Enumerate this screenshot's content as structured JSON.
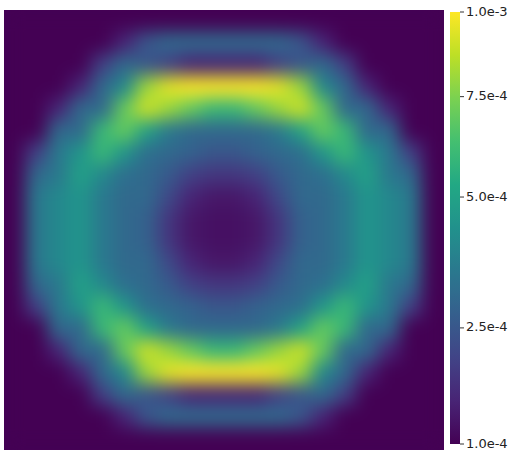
{
  "chart_data": {
    "type": "heatmap",
    "tick_labels": false,
    "cells": [
      [
        0.0001,
        0.0001,
        0.0001,
        0.0001,
        0.0001,
        0.0001,
        0.0001,
        0.0001,
        0.0001,
        0.0001,
        0.0001,
        0.0001,
        0.0001,
        0.0001,
        0.0001,
        0.0001,
        0.0001,
        0.0001,
        0.0001,
        0.0001
      ],
      [
        0.0001,
        0.0001,
        0.0001,
        0.0001,
        0.0001,
        0.00015,
        0.00025,
        0.0003,
        0.0003,
        0.0003,
        0.0003,
        0.0003,
        0.0003,
        0.00025,
        0.00015,
        0.0001,
        0.0001,
        0.0001,
        0.0001,
        0.0001
      ],
      [
        0.0001,
        0.0001,
        0.0001,
        0.0001,
        0.0002,
        0.0003,
        0.00025,
        0.0002,
        0.00015,
        0.00015,
        0.00015,
        0.00015,
        0.0002,
        0.00025,
        0.0003,
        0.0002,
        0.0001,
        0.0001,
        0.0001,
        0.0001
      ],
      [
        0.0001,
        0.0001,
        0.0001,
        0.00015,
        0.0003,
        0.0004,
        0.0008,
        0.00095,
        0.001,
        0.001,
        0.001,
        0.001,
        0.00095,
        0.0008,
        0.0004,
        0.0003,
        0.00015,
        0.0001,
        0.0001,
        0.0001
      ],
      [
        0.0001,
        0.0001,
        0.00015,
        0.0003,
        0.0003,
        0.0007,
        0.0009,
        0.0008,
        0.0007,
        0.0006,
        0.0006,
        0.0007,
        0.0008,
        0.0009,
        0.0007,
        0.0003,
        0.0003,
        0.00015,
        0.0001,
        0.0001
      ],
      [
        0.0001,
        0.0001,
        0.0003,
        0.0003,
        0.0006,
        0.0007,
        0.0005,
        0.00035,
        0.0003,
        0.0003,
        0.0003,
        0.0003,
        0.00035,
        0.0005,
        0.0007,
        0.0006,
        0.0003,
        0.0003,
        0.0001,
        0.0001
      ],
      [
        0.0001,
        0.0002,
        0.00035,
        0.00045,
        0.0006,
        0.00045,
        0.00032,
        0.0003,
        0.00028,
        0.00025,
        0.00025,
        0.00028,
        0.0003,
        0.00032,
        0.00045,
        0.0006,
        0.00045,
        0.00035,
        0.0002,
        0.0001
      ],
      [
        0.0001,
        0.0003,
        0.00035,
        0.0005,
        0.0004,
        0.00032,
        0.0003,
        0.00026,
        0.0002,
        0.00018,
        0.00018,
        0.0002,
        0.00026,
        0.0003,
        0.00032,
        0.0004,
        0.0005,
        0.00035,
        0.0003,
        0.0001
      ],
      [
        0.0001,
        0.00035,
        0.0004,
        0.00045,
        0.00035,
        0.0003,
        0.0003,
        0.00022,
        0.00015,
        0.00013,
        0.00013,
        0.00015,
        0.00022,
        0.0003,
        0.0003,
        0.00035,
        0.00045,
        0.0004,
        0.00035,
        0.0001
      ],
      [
        0.0001,
        0.00035,
        0.0004,
        0.00045,
        0.00035,
        0.0003,
        0.00028,
        0.00018,
        0.00013,
        0.00012,
        0.00012,
        0.00013,
        0.00018,
        0.00028,
        0.0003,
        0.00035,
        0.00045,
        0.0004,
        0.00035,
        0.0001
      ],
      [
        0.0001,
        0.00035,
        0.0004,
        0.00045,
        0.00035,
        0.0003,
        0.00028,
        0.00018,
        0.00013,
        0.00012,
        0.00012,
        0.00013,
        0.00018,
        0.00028,
        0.0003,
        0.00035,
        0.00045,
        0.0004,
        0.00035,
        0.0001
      ],
      [
        0.0001,
        0.00035,
        0.0004,
        0.00045,
        0.00035,
        0.0003,
        0.0003,
        0.00022,
        0.00015,
        0.00013,
        0.00013,
        0.00015,
        0.00022,
        0.0003,
        0.0003,
        0.00035,
        0.00045,
        0.0004,
        0.00035,
        0.0001
      ],
      [
        0.0001,
        0.0003,
        0.00035,
        0.0005,
        0.0004,
        0.00032,
        0.0003,
        0.00026,
        0.0002,
        0.00018,
        0.00018,
        0.0002,
        0.00026,
        0.0003,
        0.00032,
        0.0004,
        0.0005,
        0.00035,
        0.0003,
        0.0001
      ],
      [
        0.0001,
        0.0002,
        0.00035,
        0.00045,
        0.0006,
        0.00045,
        0.00032,
        0.0003,
        0.00028,
        0.00025,
        0.00025,
        0.00028,
        0.0003,
        0.00032,
        0.00045,
        0.0006,
        0.00045,
        0.00035,
        0.0002,
        0.0001
      ],
      [
        0.0001,
        0.0001,
        0.0003,
        0.0003,
        0.0006,
        0.0007,
        0.0005,
        0.00035,
        0.0003,
        0.0003,
        0.0003,
        0.0003,
        0.00035,
        0.0005,
        0.0007,
        0.0006,
        0.0003,
        0.0003,
        0.0001,
        0.0001
      ],
      [
        0.0001,
        0.0001,
        0.00015,
        0.0003,
        0.0003,
        0.0007,
        0.0009,
        0.0008,
        0.0007,
        0.0006,
        0.0006,
        0.0007,
        0.0008,
        0.0009,
        0.0007,
        0.0003,
        0.0003,
        0.00015,
        0.0001,
        0.0001
      ],
      [
        0.0001,
        0.0001,
        0.0001,
        0.00015,
        0.0003,
        0.0004,
        0.0008,
        0.00095,
        0.001,
        0.001,
        0.001,
        0.001,
        0.00095,
        0.0008,
        0.0004,
        0.0003,
        0.00015,
        0.0001,
        0.0001,
        0.0001
      ],
      [
        0.0001,
        0.0001,
        0.0001,
        0.0001,
        0.0002,
        0.0003,
        0.00025,
        0.0002,
        0.00015,
        0.00015,
        0.00015,
        0.00015,
        0.0002,
        0.00025,
        0.0003,
        0.0002,
        0.0001,
        0.0001,
        0.0001,
        0.0001
      ],
      [
        0.0001,
        0.0001,
        0.0001,
        0.0001,
        0.0001,
        0.00015,
        0.00025,
        0.0003,
        0.0003,
        0.0003,
        0.0003,
        0.0003,
        0.0003,
        0.00025,
        0.00015,
        0.0001,
        0.0001,
        0.0001,
        0.0001,
        0.0001
      ],
      [
        0.0001,
        0.0001,
        0.0001,
        0.0001,
        0.0001,
        0.0001,
        0.0001,
        0.0001,
        0.0001,
        0.0001,
        0.0001,
        0.0001,
        0.0001,
        0.0001,
        0.0001,
        0.0001,
        0.0001,
        0.0001,
        0.0001,
        0.0001
      ]
    ],
    "colorbar": {
      "range": [
        0.0001,
        0.001
      ],
      "ticks": [
        {
          "value": 0.001,
          "label": "1.0e-3"
        },
        {
          "value": 0.00075,
          "label": "7.5e-4"
        },
        {
          "value": 0.0005,
          "label": "5.0e-4"
        },
        {
          "value": 0.00025,
          "label": "2.5e-4"
        },
        {
          "value": 0.0001,
          "label": "1.0e-4"
        }
      ]
    }
  }
}
